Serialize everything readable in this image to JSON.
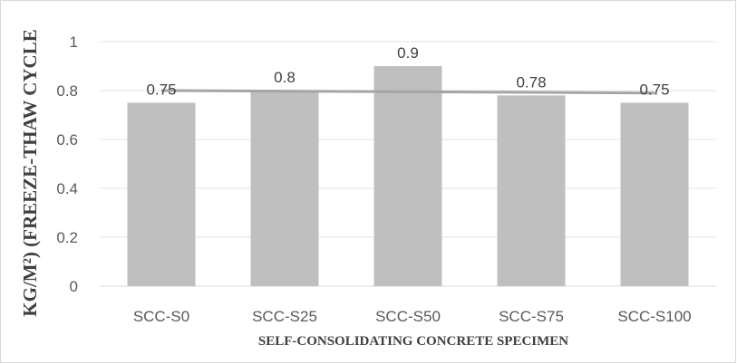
{
  "chart_data": {
    "type": "bar",
    "title": "",
    "categories": [
      "SCC-S0",
      "SCC-S25",
      "SCC-S50",
      "SCC-S75",
      "SCC-S100"
    ],
    "series": [
      {
        "values": [
          0.75,
          0.8,
          0.9,
          0.78,
          0.75
        ],
        "data_labels": [
          "0.75",
          "0.8",
          "0.9",
          "0.78",
          "0.75"
        ]
      }
    ],
    "trendline": {
      "type": "linear",
      "start_value": 0.8,
      "end_value": 0.79
    },
    "xlabel": "SELF-CONSOLIDATING CONCRETE SPECIMEN",
    "ylabel": "KG/M²) (FREEZE-THAW CYCLE",
    "ylim": [
      0,
      1
    ],
    "yticks": [
      "0",
      "0.2",
      "0.4",
      "0.6",
      "0.8",
      "1"
    ],
    "grid": true,
    "legend": "none",
    "colors": {
      "bar": "#bfbfbf",
      "trendline": "#a5a5a5",
      "grid": "#e3e3e3",
      "axis": "#d9d9d9"
    }
  }
}
